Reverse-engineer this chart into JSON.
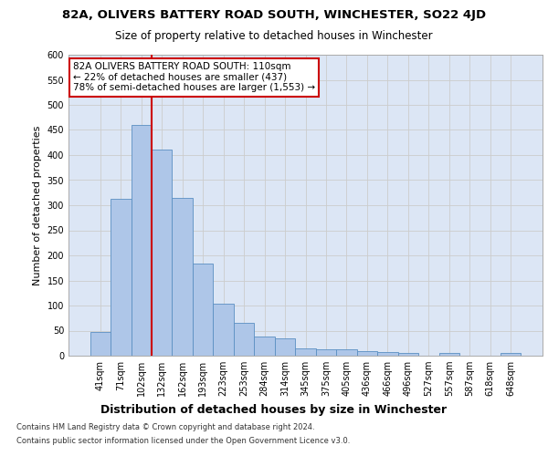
{
  "title_line1": "82A, OLIVERS BATTERY ROAD SOUTH, WINCHESTER, SO22 4JD",
  "title_line2": "Size of property relative to detached houses in Winchester",
  "xlabel": "Distribution of detached houses by size in Winchester",
  "ylabel": "Number of detached properties",
  "categories": [
    "41sqm",
    "71sqm",
    "102sqm",
    "132sqm",
    "162sqm",
    "193sqm",
    "223sqm",
    "253sqm",
    "284sqm",
    "314sqm",
    "345sqm",
    "375sqm",
    "405sqm",
    "436sqm",
    "466sqm",
    "496sqm",
    "527sqm",
    "557sqm",
    "587sqm",
    "618sqm",
    "648sqm"
  ],
  "values": [
    47,
    312,
    460,
    411,
    315,
    184,
    103,
    66,
    38,
    35,
    14,
    12,
    12,
    10,
    8,
    5,
    0,
    5,
    0,
    0,
    5
  ],
  "bar_color": "#aec6e8",
  "bar_edge_color": "#5a8fc2",
  "grid_color": "#cccccc",
  "bg_color": "#dce6f5",
  "vline_color": "#cc0000",
  "vline_x_index": 2,
  "annotation_text": "82A OLIVERS BATTERY ROAD SOUTH: 110sqm\n← 22% of detached houses are smaller (437)\n78% of semi-detached houses are larger (1,553) →",
  "annotation_box_color": "#ffffff",
  "annotation_border_color": "#cc0000",
  "footnote1": "Contains HM Land Registry data © Crown copyright and database right 2024.",
  "footnote2": "Contains public sector information licensed under the Open Government Licence v3.0.",
  "ylim": [
    0,
    600
  ],
  "yticks": [
    0,
    50,
    100,
    150,
    200,
    250,
    300,
    350,
    400,
    450,
    500,
    550,
    600
  ],
  "title1_fontsize": 9.5,
  "title2_fontsize": 8.5,
  "xlabel_fontsize": 9,
  "ylabel_fontsize": 8,
  "tick_fontsize": 7,
  "annot_fontsize": 7.5
}
